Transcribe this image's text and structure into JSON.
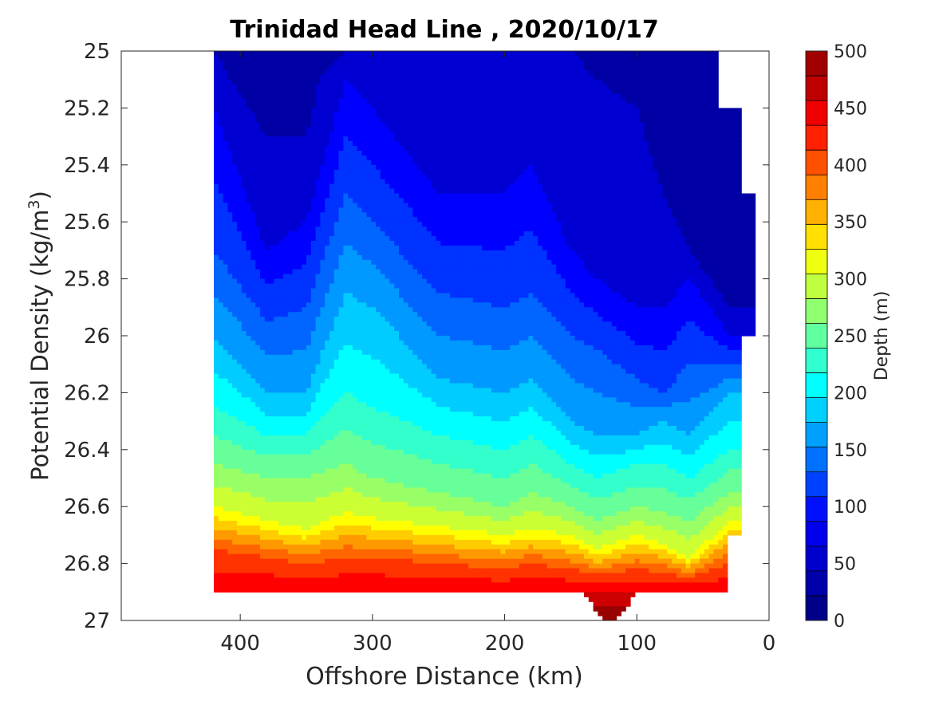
{
  "chart_data": {
    "type": "contour",
    "title": "Trinidad Head Line , 2020/10/17",
    "xlabel": "Offshore Distance (km)",
    "ylabel_main": "Potential Density (kg/m",
    "ylabel_sup": "3",
    "ylabel_close": ")",
    "xlim": [
      490,
      0
    ],
    "ylim": [
      25,
      27
    ],
    "x_reversed": true,
    "y_reversed": true,
    "xticks": [
      400,
      300,
      200,
      100,
      0
    ],
    "yticks": [
      25,
      25.2,
      25.4,
      25.6,
      25.8,
      26,
      26.2,
      26.4,
      26.6,
      26.8,
      27
    ],
    "ytick_labels": [
      "25",
      "25.2",
      "25.4",
      "25.6",
      "25.8",
      "26",
      "26.2",
      "26.4",
      "26.6",
      "26.8",
      "27"
    ],
    "grid": false,
    "colorbar": {
      "label": "Depth (m)",
      "range": [
        0,
        500
      ],
      "ticks": [
        0,
        50,
        100,
        150,
        200,
        250,
        300,
        350,
        400,
        450,
        500
      ],
      "levels": 20,
      "colormap": "jet",
      "colors": [
        "#000088",
        "#0000aa",
        "#0000cc",
        "#0000ee",
        "#0010ff",
        "#0040ff",
        "#0070ff",
        "#00a0ff",
        "#00d0ff",
        "#00ffff",
        "#30ffcf",
        "#60ff9f",
        "#90ff6f",
        "#c0ff3f",
        "#f0ff0f",
        "#ffe000",
        "#ffb000",
        "#ff8000",
        "#ff5000",
        "#ff2000",
        "#f00000",
        "#c00000",
        "#a00000"
      ]
    },
    "data_extent": {
      "x_range_km": [
        420,
        10
      ],
      "density_range": [
        25,
        26.9
      ],
      "seafloor_notch_km": [
        140,
        100
      ]
    },
    "series": [
      {
        "depth": 25,
        "x": [
          420,
          380,
          350,
          340,
          320,
          300,
          250,
          200,
          180,
          150,
          130,
          100,
          80,
          60,
          30
        ],
        "y": [
          25.0,
          25.3,
          25.3,
          25.1,
          25.0,
          25.0,
          25.0,
          25.0,
          25.0,
          25.0,
          25.1,
          25.2,
          25.5,
          25.7,
          25.9
        ]
      },
      {
        "depth": 50,
        "x": [
          420,
          380,
          350,
          320,
          300,
          250,
          200,
          180,
          150,
          130,
          100,
          80,
          60,
          30
        ],
        "y": [
          25.2,
          25.7,
          25.6,
          25.1,
          25.2,
          25.5,
          25.5,
          25.4,
          25.7,
          25.8,
          25.9,
          25.9,
          25.8,
          26.0
        ]
      },
      {
        "depth": 100,
        "x": [
          420,
          380,
          350,
          320,
          300,
          250,
          200,
          180,
          150,
          130,
          100,
          80,
          60,
          30
        ],
        "y": [
          25.7,
          25.95,
          25.9,
          25.5,
          25.6,
          25.85,
          25.9,
          25.85,
          26.0,
          26.05,
          26.15,
          26.2,
          26.1,
          26.1
        ]
      },
      {
        "depth": 150,
        "x": [
          420,
          380,
          350,
          320,
          300,
          250,
          200,
          180,
          150,
          130,
          100,
          80,
          60,
          30
        ],
        "y": [
          26.0,
          26.2,
          26.2,
          25.85,
          25.9,
          26.15,
          26.2,
          26.15,
          26.3,
          26.35,
          26.35,
          26.3,
          26.35,
          26.2
        ]
      },
      {
        "depth": 200,
        "x": [
          420,
          380,
          350,
          320,
          300,
          250,
          200,
          180,
          150,
          130,
          100,
          80,
          60,
          30
        ],
        "y": [
          26.25,
          26.35,
          26.35,
          26.2,
          26.25,
          26.35,
          26.4,
          26.35,
          26.45,
          26.5,
          26.45,
          26.45,
          26.5,
          26.4
        ]
      },
      {
        "depth": 250,
        "x": [
          420,
          380,
          350,
          320,
          300,
          250,
          200,
          180,
          150,
          130,
          100,
          80,
          60,
          30
        ],
        "y": [
          26.45,
          26.5,
          26.5,
          26.45,
          26.5,
          26.55,
          26.6,
          26.55,
          26.6,
          26.65,
          26.6,
          26.62,
          26.65,
          26.55
        ]
      },
      {
        "depth": 300,
        "x": [
          420,
          380,
          350,
          320,
          300,
          250,
          200,
          180,
          150,
          130,
          100,
          80,
          60,
          30
        ],
        "y": [
          26.6,
          26.65,
          26.68,
          26.62,
          26.64,
          26.67,
          26.7,
          26.68,
          26.7,
          26.75,
          26.7,
          26.73,
          26.78,
          26.65
        ]
      },
      {
        "depth": 400,
        "x": [
          420,
          380,
          350,
          320,
          300,
          250,
          200,
          180,
          150,
          130,
          100,
          80,
          60,
          30
        ],
        "y": [
          26.75,
          26.78,
          26.8,
          26.78,
          26.78,
          26.8,
          26.82,
          26.8,
          26.82,
          26.84,
          26.82,
          26.83,
          26.85,
          26.8
        ]
      }
    ]
  }
}
